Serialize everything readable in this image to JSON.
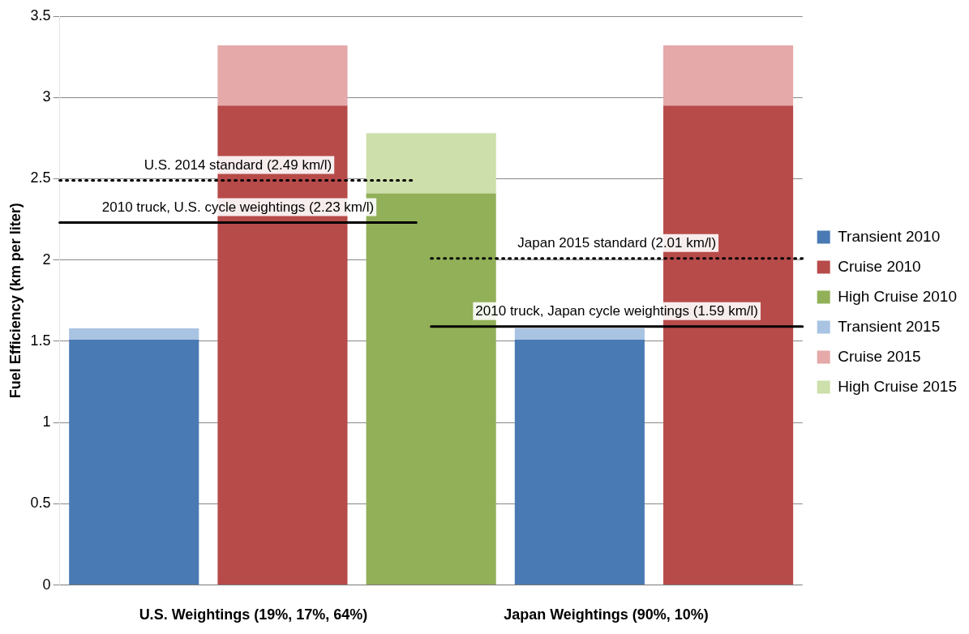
{
  "chart_data": {
    "type": "bar",
    "stacked": true,
    "ylabel": "Fuel Efficiency (km per liter)",
    "categories": [
      null,
      null,
      null,
      null,
      null
    ],
    "series": [
      {
        "name": "Transient 2010",
        "color": "#4a7ab4",
        "values": [
          1.51,
          null,
          null,
          1.51,
          null
        ]
      },
      {
        "name": "Cruise 2010",
        "color": "#b74b4a",
        "values": [
          null,
          2.95,
          null,
          null,
          2.95
        ]
      },
      {
        "name": "High Cruise 2010",
        "color": "#92b058",
        "values": [
          null,
          null,
          2.41,
          null,
          null
        ]
      },
      {
        "name": "Transient 2015",
        "color": "#a9c3e3",
        "values": [
          0.07,
          null,
          null,
          0.07,
          null
        ]
      },
      {
        "name": "Cruise 2015",
        "color": "#e4a9a8",
        "values": [
          null,
          0.37,
          null,
          null,
          0.37
        ]
      },
      {
        "name": "High Cruise 2015",
        "color": "#cddfaa",
        "values": [
          null,
          null,
          0.37,
          null,
          null
        ]
      }
    ],
    "ylim": [
      0,
      3.5
    ],
    "yticks": [
      0,
      0.5,
      1,
      1.5,
      2,
      2.5,
      3,
      3.5
    ],
    "grid": "y",
    "legend": "right",
    "ref_lines": [
      {
        "axis": "y",
        "value": 2.49,
        "label": "U.S. 2014 standard (2.49 km/l)",
        "line_style": "dotted",
        "color": "#000000"
      },
      {
        "axis": "y",
        "value": 2.23,
        "label": "2010 truck, U.S. cycle weightings (2.23 km/l)",
        "line_style": "solid",
        "color": "#000000"
      },
      {
        "axis": "y",
        "value": 2.01,
        "label": "Japan 2015 standard (2.01 km/l)",
        "line_style": "dotted",
        "color": "#000000"
      },
      {
        "axis": "y",
        "value": 1.59,
        "label": "2010 truck, Japan cycle weightings (1.59 km/l)",
        "line_style": "solid",
        "color": "#000000"
      }
    ],
    "annotations": [
      "U.S. Weightings (19%, 17%, 64%)",
      "Japan Weightings (90%, 10%)"
    ]
  }
}
